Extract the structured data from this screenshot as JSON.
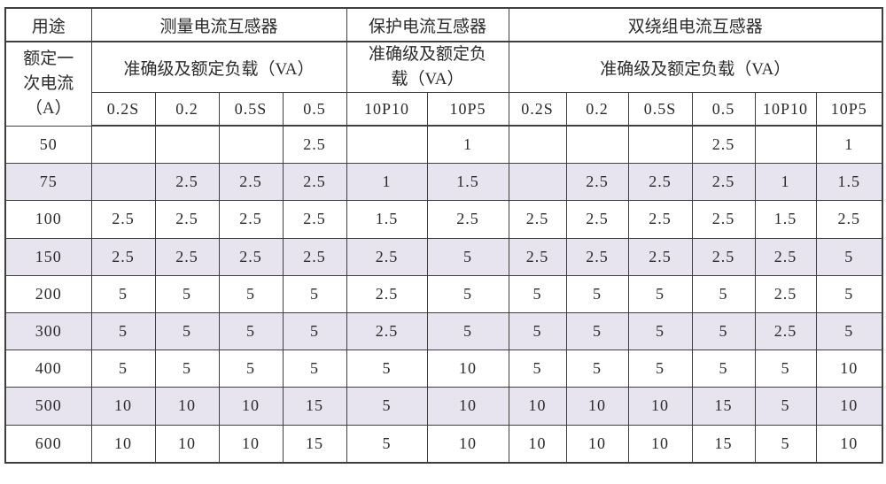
{
  "colors": {
    "stripe": "#e7e3ef",
    "border": "#3f3f3f",
    "text": "#2b2b2b",
    "background": "#ffffff"
  },
  "table": {
    "usage_label": "用途",
    "rated_current_label": "额定一\n次电流\n（A）",
    "groups": [
      {
        "title": "测量电流互感器",
        "subtitle": "准确级及额定负载（VA）",
        "columns": [
          "0.2S",
          "0.2",
          "0.5S",
          "0.5"
        ]
      },
      {
        "title": "保护电流互感器",
        "subtitle": "准确级及额定负\n载（VA）",
        "columns": [
          "10P10",
          "10P5"
        ]
      },
      {
        "title": "双绕组电流互感器",
        "subtitle": "准确级及额定负载（VA）",
        "columns": [
          "0.2S",
          "0.2",
          "0.5S",
          "0.5",
          "10P10",
          "10P5"
        ]
      }
    ],
    "rows": [
      {
        "current": "50",
        "values": [
          "",
          "",
          "",
          "2.5",
          "",
          "1",
          "",
          "",
          "",
          "2.5",
          "",
          "1"
        ]
      },
      {
        "current": "75",
        "values": [
          "",
          "2.5",
          "2.5",
          "2.5",
          "1",
          "1.5",
          "",
          "2.5",
          "2.5",
          "2.5",
          "1",
          "1.5"
        ]
      },
      {
        "current": "100",
        "values": [
          "2.5",
          "2.5",
          "2.5",
          "2.5",
          "1.5",
          "2.5",
          "2.5",
          "2.5",
          "2.5",
          "2.5",
          "1.5",
          "2.5"
        ]
      },
      {
        "current": "150",
        "values": [
          "2.5",
          "2.5",
          "2.5",
          "2.5",
          "2.5",
          "5",
          "2.5",
          "2.5",
          "2.5",
          "2.5",
          "2.5",
          "5"
        ]
      },
      {
        "current": "200",
        "values": [
          "5",
          "5",
          "5",
          "5",
          "2.5",
          "5",
          "5",
          "5",
          "5",
          "5",
          "2.5",
          "5"
        ]
      },
      {
        "current": "300",
        "values": [
          "5",
          "5",
          "5",
          "5",
          "2.5",
          "5",
          "5",
          "5",
          "5",
          "5",
          "2.5",
          "5"
        ]
      },
      {
        "current": "400",
        "values": [
          "5",
          "5",
          "5",
          "5",
          "5",
          "10",
          "5",
          "5",
          "5",
          "5",
          "5",
          "10"
        ]
      },
      {
        "current": "500",
        "values": [
          "10",
          "10",
          "10",
          "15",
          "5",
          "10",
          "10",
          "10",
          "10",
          "15",
          "5",
          "10"
        ]
      },
      {
        "current": "600",
        "values": [
          "10",
          "10",
          "10",
          "15",
          "5",
          "10",
          "10",
          "10",
          "10",
          "15",
          "5",
          "10"
        ]
      }
    ]
  }
}
